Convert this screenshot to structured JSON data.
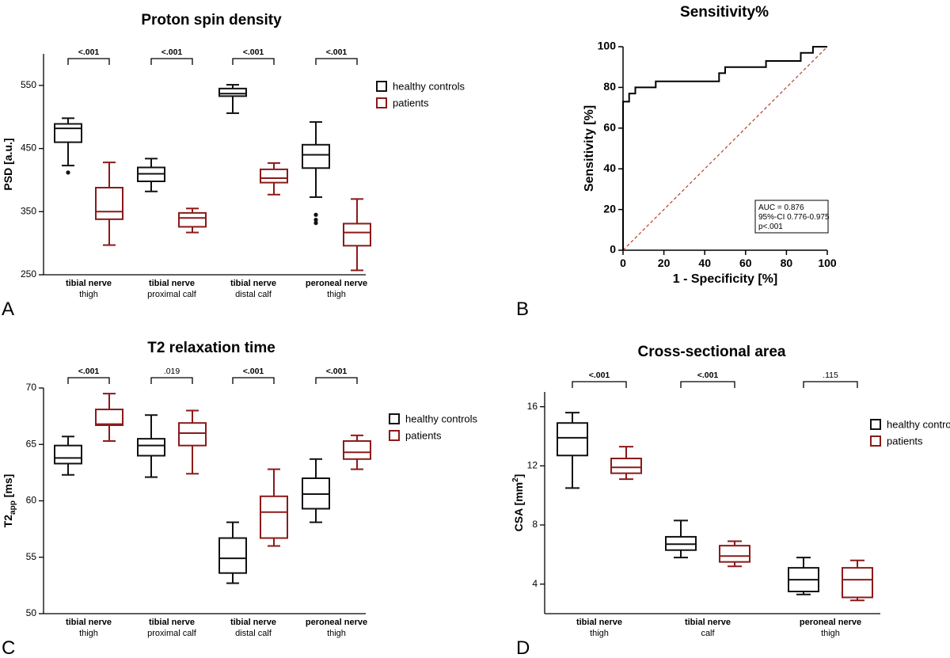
{
  "colors": {
    "controls": "#111111",
    "patients": "#8b1a1a",
    "diagonal": "#c0392b",
    "axis": "#000000"
  },
  "legend": {
    "controls": "healthy controls",
    "patients": "patients"
  },
  "chart_data": [
    {
      "id": "A",
      "type": "box",
      "panel_letter": "A",
      "title": "Proton spin density",
      "ylabel": "PSD [a.u.]",
      "ylim": [
        250,
        600
      ],
      "yticks": [
        250,
        350,
        450,
        550
      ],
      "legend_position": "top-right",
      "groups": [
        {
          "label_bold": "tibial nerve",
          "label_sub": "thigh",
          "p_value": "<.001",
          "controls": {
            "whislo": 423,
            "q1": 460,
            "med": 482,
            "q3": 489,
            "whishi": 498,
            "fliers": [
              412
            ]
          },
          "patients": {
            "whislo": 297,
            "q1": 338,
            "med": 350,
            "q3": 388,
            "whishi": 428,
            "fliers": []
          }
        },
        {
          "label_bold": "tibial nerve",
          "label_sub": "proximal calf",
          "p_value": "<.001",
          "controls": {
            "whislo": 382,
            "q1": 398,
            "med": 410,
            "q3": 420,
            "whishi": 434,
            "fliers": []
          },
          "patients": {
            "whislo": 317,
            "q1": 326,
            "med": 340,
            "q3": 348,
            "whishi": 355,
            "fliers": []
          }
        },
        {
          "label_bold": "tibial nerve",
          "label_sub": "distal calf",
          "p_value": "<.001",
          "controls": {
            "whislo": 506,
            "q1": 533,
            "med": 537,
            "q3": 545,
            "whishi": 551,
            "fliers": []
          },
          "patients": {
            "whislo": 377,
            "q1": 396,
            "med": 403,
            "q3": 417,
            "whishi": 427,
            "fliers": []
          }
        },
        {
          "label_bold": "peroneal nerve",
          "label_sub": "thigh",
          "p_value": "<.001",
          "controls": {
            "whislo": 373,
            "q1": 419,
            "med": 440,
            "q3": 456,
            "whishi": 492,
            "fliers": [
              345,
              337,
              332
            ]
          },
          "patients": {
            "whislo": 257,
            "q1": 296,
            "med": 317,
            "q3": 331,
            "whishi": 370,
            "fliers": []
          }
        }
      ]
    },
    {
      "id": "B",
      "type": "line",
      "panel_letter": "B",
      "title": "Sensitivity%",
      "xlabel": "1 - Specificity [%]",
      "ylabel": "Sensitivity [%]",
      "xlim": [
        0,
        100
      ],
      "ylim": [
        0,
        100
      ],
      "xticks": [
        0,
        20,
        40,
        60,
        80,
        100
      ],
      "yticks": [
        0,
        20,
        40,
        60,
        80,
        100
      ],
      "roc_x": [
        0,
        0,
        3,
        3,
        6,
        6,
        16,
        16,
        47,
        47,
        50,
        50,
        70,
        70,
        87,
        87,
        93,
        93,
        100
      ],
      "roc_y": [
        0,
        73,
        73,
        77,
        77,
        80,
        80,
        83,
        83,
        87,
        87,
        90,
        90,
        93,
        93,
        97,
        97,
        100,
        100
      ],
      "diagonal": [
        [
          0,
          0
        ],
        [
          100,
          100
        ]
      ],
      "annotation": [
        "AUC = 0.876",
        "95%-CI 0.776-0.975",
        "p<.001"
      ]
    },
    {
      "id": "C",
      "type": "box",
      "panel_letter": "C",
      "title": "T2 relaxation time",
      "ylabel_main": "T2",
      "ylabel_sub": "app",
      "ylabel_tail": " [ms]",
      "ylim": [
        50,
        70
      ],
      "yticks": [
        50,
        55,
        60,
        65,
        70
      ],
      "legend_position": "top-right",
      "groups": [
        {
          "label_bold": "tibial nerve",
          "label_sub": "thigh",
          "p_value": "<.001",
          "controls": {
            "whislo": 62.3,
            "q1": 63.3,
            "med": 63.8,
            "q3": 64.9,
            "whishi": 65.7,
            "fliers": []
          },
          "patients": {
            "whislo": 65.3,
            "q1": 66.7,
            "med": 66.8,
            "q3": 68.1,
            "whishi": 69.5,
            "fliers": []
          }
        },
        {
          "label_bold": "tibial nerve",
          "label_sub": "proximal calf",
          "p_value": ".019",
          "controls": {
            "whislo": 62.1,
            "q1": 64.0,
            "med": 64.9,
            "q3": 65.5,
            "whishi": 67.6,
            "fliers": []
          },
          "patients": {
            "whislo": 62.4,
            "q1": 64.9,
            "med": 66.0,
            "q3": 66.9,
            "whishi": 68.0,
            "fliers": []
          }
        },
        {
          "label_bold": "tibial nerve",
          "label_sub": "distal calf",
          "p_value": "<.001",
          "controls": {
            "whislo": 52.7,
            "q1": 53.6,
            "med": 54.9,
            "q3": 56.7,
            "whishi": 58.1,
            "fliers": []
          },
          "patients": {
            "whislo": 56.0,
            "q1": 56.7,
            "med": 59.0,
            "q3": 60.4,
            "whishi": 62.8,
            "fliers": []
          }
        },
        {
          "label_bold": "peroneal nerve",
          "label_sub": "thigh",
          "p_value": "<.001",
          "controls": {
            "whislo": 58.1,
            "q1": 59.3,
            "med": 60.6,
            "q3": 62.0,
            "whishi": 63.7,
            "fliers": []
          },
          "patients": {
            "whislo": 62.8,
            "q1": 63.7,
            "med": 64.3,
            "q3": 65.3,
            "whishi": 65.8,
            "fliers": []
          }
        }
      ]
    },
    {
      "id": "D",
      "type": "box",
      "panel_letter": "D",
      "title": "Cross-sectional area",
      "ylabel_main": "CSA [mm",
      "ylabel_sup": "2",
      "ylabel_tail": "]",
      "ylim": [
        2,
        17
      ],
      "yticks": [
        4,
        8,
        12,
        16
      ],
      "legend_position": "top-right",
      "groups": [
        {
          "label_bold": "tibial nerve",
          "label_sub": "thigh",
          "p_value": "<.001",
          "controls": {
            "whislo": 10.5,
            "q1": 12.7,
            "med": 13.9,
            "q3": 14.9,
            "whishi": 15.6,
            "fliers": []
          },
          "patients": {
            "whislo": 11.1,
            "q1": 11.5,
            "med": 11.9,
            "q3": 12.5,
            "whishi": 13.3,
            "fliers": []
          }
        },
        {
          "label_bold": "tibial nerve",
          "label_sub": "calf",
          "p_value": "<.001",
          "controls": {
            "whislo": 5.8,
            "q1": 6.3,
            "med": 6.7,
            "q3": 7.2,
            "whishi": 8.3,
            "fliers": []
          },
          "patients": {
            "whislo": 5.2,
            "q1": 5.5,
            "med": 5.9,
            "q3": 6.6,
            "whishi": 6.9,
            "fliers": []
          }
        },
        {
          "label_bold": "peroneal nerve",
          "label_sub": "thigh",
          "p_value": ".115",
          "controls": {
            "whislo": 3.3,
            "q1": 3.5,
            "med": 4.3,
            "q3": 5.1,
            "whishi": 5.8,
            "fliers": []
          },
          "patients": {
            "whislo": 2.9,
            "q1": 3.1,
            "med": 4.3,
            "q3": 5.1,
            "whishi": 5.6,
            "fliers": []
          }
        }
      ]
    }
  ]
}
